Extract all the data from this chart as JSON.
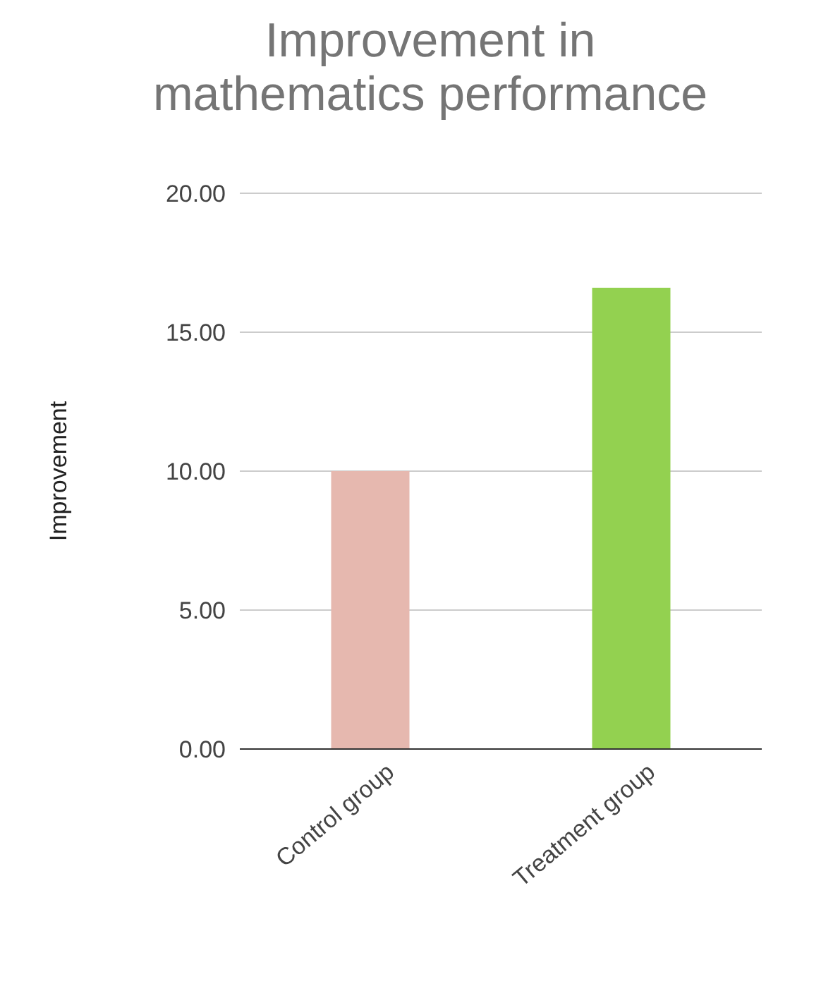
{
  "chart_data": {
    "type": "bar",
    "title": "Improvement in mathematics performance",
    "ylabel": "Improvement",
    "categories": [
      "Control group",
      "Treatment group"
    ],
    "values": [
      10,
      16.6
    ],
    "colors": [
      "#e6b8af",
      "#93d150"
    ],
    "ylim": [
      0,
      20
    ],
    "yticks": [
      {
        "value": 0,
        "label": "0.00"
      },
      {
        "value": 5,
        "label": "5.00"
      },
      {
        "value": 10,
        "label": "10.00"
      },
      {
        "value": 15,
        "label": "15.00"
      },
      {
        "value": 20,
        "label": "20.00"
      }
    ],
    "grid": "y"
  }
}
